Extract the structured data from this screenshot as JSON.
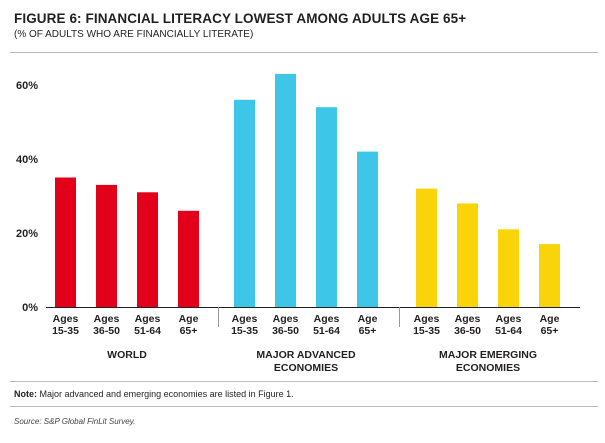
{
  "figure": {
    "title": "FIGURE 6: FINANCIAL LITERACY LOWEST AMONG ADULTS AGE 65+",
    "subtitle": "(% OF ADULTS WHO ARE FINANCIALLY LITERATE)",
    "note_label": "Note:",
    "note_text": "Major advanced and emerging economies are listed in Figure 1.",
    "source": "Source: S&P Global FinLit Survey."
  },
  "chart_data": {
    "type": "bar",
    "ylim": [
      0,
      60
    ],
    "yticks": [
      {
        "value": 0,
        "label": "0%"
      },
      {
        "value": 20,
        "label": "20%"
      },
      {
        "value": 40,
        "label": "40%"
      },
      {
        "value": 60,
        "label": "60%"
      }
    ],
    "grid": false,
    "age_labels": [
      [
        "Ages",
        "15-35"
      ],
      [
        "Ages",
        "36-50"
      ],
      [
        "Ages",
        "51-64"
      ],
      [
        "Age",
        "65+"
      ]
    ],
    "groups": [
      {
        "label": [
          "WORLD"
        ],
        "color": "#e2001a",
        "values": [
          35,
          33,
          31,
          26
        ]
      },
      {
        "label": [
          "MAJOR ADVANCED",
          "ECONOMIES"
        ],
        "color": "#3ec6e8",
        "values": [
          56,
          63,
          54,
          42
        ]
      },
      {
        "label": [
          "MAJOR EMERGING",
          "ECONOMIES"
        ],
        "color": "#f9d40a",
        "values": [
          32,
          28,
          21,
          17
        ]
      }
    ]
  }
}
